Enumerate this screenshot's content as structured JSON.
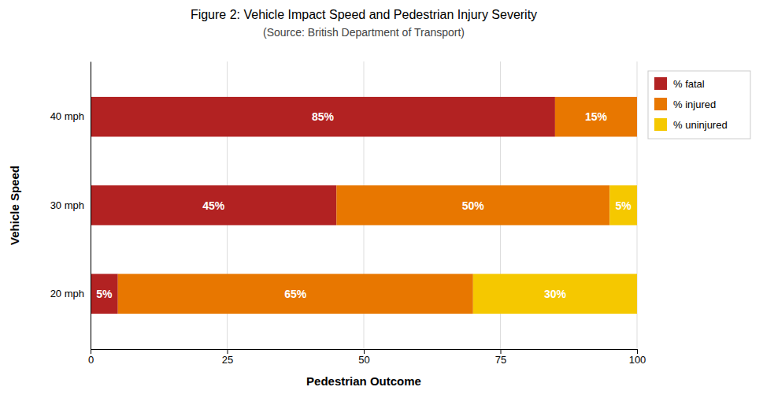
{
  "chart_data": {
    "type": "bar",
    "orientation": "horizontal",
    "stacked": true,
    "title": "Figure 2: Vehicle Impact Speed and Pedestrian Injury Severity",
    "subtitle": "(Source: British Department of Transport)",
    "categories": [
      "20 mph",
      "30 mph",
      "40 mph"
    ],
    "series": [
      {
        "name": "% fatal",
        "color": "#B22222",
        "values": [
          5,
          45,
          85
        ],
        "value_labels": [
          "5%",
          "45%",
          "85%"
        ]
      },
      {
        "name": "% injured",
        "color": "#E87700",
        "values": [
          65,
          50,
          15
        ],
        "value_labels": [
          "65%",
          "50%",
          "15%"
        ]
      },
      {
        "name": "% uninjured",
        "color": "#F5C800",
        "values": [
          30,
          5,
          0
        ],
        "value_labels": [
          "30%",
          "5%",
          null
        ]
      }
    ],
    "xlabel": "Pedestrian Outcome",
    "ylabel": "Vehicle Speed",
    "xlim": [
      0,
      100
    ],
    "xticks": [
      0,
      25,
      50,
      75,
      100
    ],
    "grid": true,
    "legend": "right",
    "data_labels": true
  }
}
